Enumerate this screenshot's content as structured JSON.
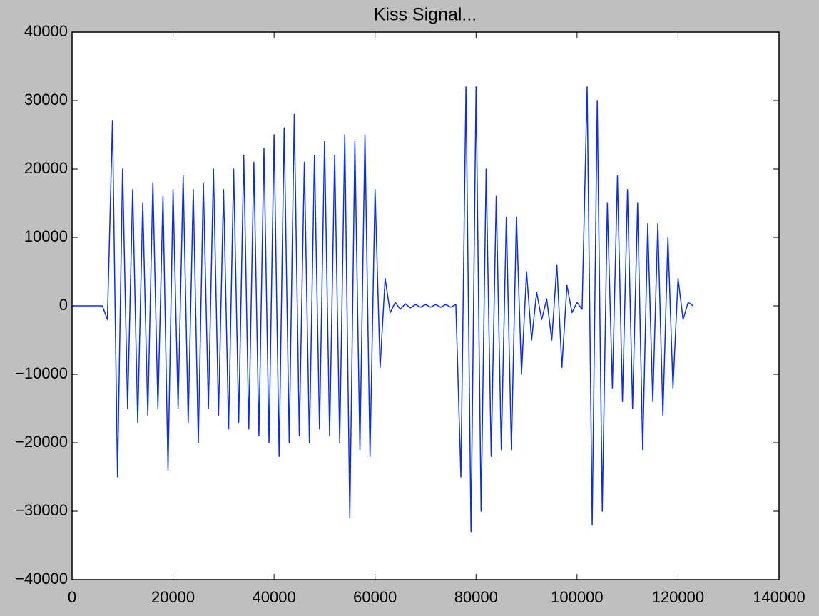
{
  "chart_data": {
    "type": "line",
    "title": "Kiss Signal...",
    "x": [
      0,
      1000,
      2000,
      3000,
      4000,
      5000,
      6000,
      7000,
      8000,
      9000,
      10000,
      11000,
      12000,
      13000,
      14000,
      15000,
      16000,
      17000,
      18000,
      19000,
      20000,
      21000,
      22000,
      23000,
      24000,
      25000,
      26000,
      27000,
      28000,
      29000,
      30000,
      31000,
      32000,
      33000,
      34000,
      35000,
      36000,
      37000,
      38000,
      39000,
      40000,
      41000,
      42000,
      43000,
      44000,
      45000,
      46000,
      47000,
      48000,
      49000,
      50000,
      51000,
      52000,
      53000,
      54000,
      55000,
      56000,
      57000,
      58000,
      59000,
      60000,
      61000,
      62000,
      63000,
      64000,
      65000,
      66000,
      67000,
      68000,
      69000,
      70000,
      71000,
      72000,
      73000,
      74000,
      75000,
      76000,
      77000,
      78000,
      79000,
      80000,
      81000,
      82000,
      83000,
      84000,
      85000,
      86000,
      87000,
      88000,
      89000,
      90000,
      91000,
      92000,
      93000,
      94000,
      95000,
      96000,
      97000,
      98000,
      99000,
      100000,
      101000,
      102000,
      103000,
      104000,
      105000,
      106000,
      107000,
      108000,
      109000,
      110000,
      111000,
      112000,
      113000,
      114000,
      115000,
      116000,
      117000,
      118000,
      119000,
      120000,
      121000,
      122000,
      123000
    ],
    "values": [
      0,
      0,
      0,
      0,
      0,
      0,
      0,
      -2000,
      27000,
      -25000,
      20000,
      -15000,
      17000,
      -17000,
      15000,
      -16000,
      18000,
      -15000,
      16000,
      -24000,
      17000,
      -15000,
      19000,
      -17000,
      17000,
      -20000,
      18000,
      -15000,
      20000,
      -16000,
      17000,
      -18000,
      20000,
      -17000,
      22000,
      -18000,
      21000,
      -19000,
      23000,
      -20000,
      25000,
      -22000,
      26000,
      -20000,
      28000,
      -19000,
      21000,
      -20000,
      22000,
      -18000,
      24000,
      -19000,
      22000,
      -20000,
      25000,
      -31000,
      24000,
      -21000,
      25000,
      -22000,
      17000,
      -9000,
      4000,
      -1000,
      500,
      -500,
      300,
      -300,
      200,
      -200,
      200,
      -200,
      200,
      -200,
      200,
      -200,
      200,
      -25000,
      32000,
      -33000,
      32000,
      -30000,
      20000,
      -22000,
      16000,
      -21000,
      13000,
      -21000,
      13000,
      -10000,
      5000,
      -5000,
      2000,
      -2000,
      1000,
      -5000,
      6000,
      -9000,
      3000,
      -1000,
      500,
      -500,
      32000,
      -32000,
      30000,
      -30000,
      15000,
      -12000,
      19000,
      -14000,
      17000,
      -15000,
      15000,
      -21000,
      12000,
      -14000,
      12000,
      -16000,
      10000,
      -12000,
      4000,
      -2000,
      500,
      0
    ],
    "color": "#0a2df2",
    "xlim": [
      0,
      140000
    ],
    "xticks": [
      0,
      20000,
      40000,
      60000,
      80000,
      100000,
      120000,
      140000
    ],
    "ylim": [
      -40000,
      40000
    ],
    "yticks": [
      {
        "value": -40000,
        "label": "−40000"
      },
      {
        "value": -30000,
        "label": "−30000"
      },
      {
        "value": -20000,
        "label": "−20000"
      },
      {
        "value": -10000,
        "label": "−10000"
      },
      0,
      10000,
      20000,
      30000,
      40000
    ]
  }
}
